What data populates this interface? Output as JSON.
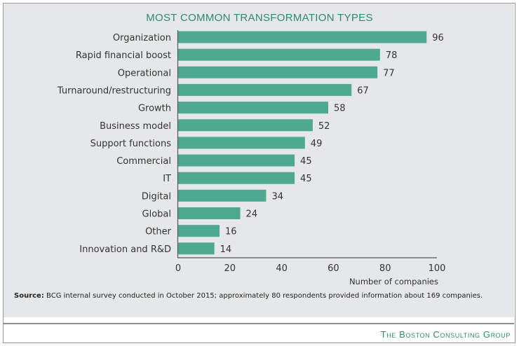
{
  "chart_data": {
    "type": "bar",
    "orientation": "horizontal",
    "title": "MOST COMMON TRANSFORMATION TYPES",
    "categories": [
      "Organization",
      "Rapid financial boost",
      "Operational",
      "Turnaround/restructuring",
      "Growth",
      "Business model",
      "Support functions",
      "Commercial",
      "IT",
      "Digital",
      "Global",
      "Other",
      "Innovation and R&D"
    ],
    "values": [
      96,
      78,
      77,
      67,
      58,
      52,
      49,
      45,
      45,
      34,
      24,
      16,
      14
    ],
    "xlabel": "Number of companies",
    "ylabel": "",
    "xlim": [
      0,
      100
    ],
    "xticks": [
      0,
      20,
      40,
      60,
      80,
      100
    ],
    "grid": false,
    "data_labels": true,
    "bar_color": "#4daa91"
  },
  "source": {
    "label": "Source:",
    "text": " BCG internal survey conducted in October 2015; approximately 80 respondents provided information about 169 companies."
  },
  "brand": "The Boston Consulting Group",
  "colors": {
    "accent": "#2e8b6e",
    "bar": "#4daa91",
    "panel": "#e6e7e8"
  }
}
